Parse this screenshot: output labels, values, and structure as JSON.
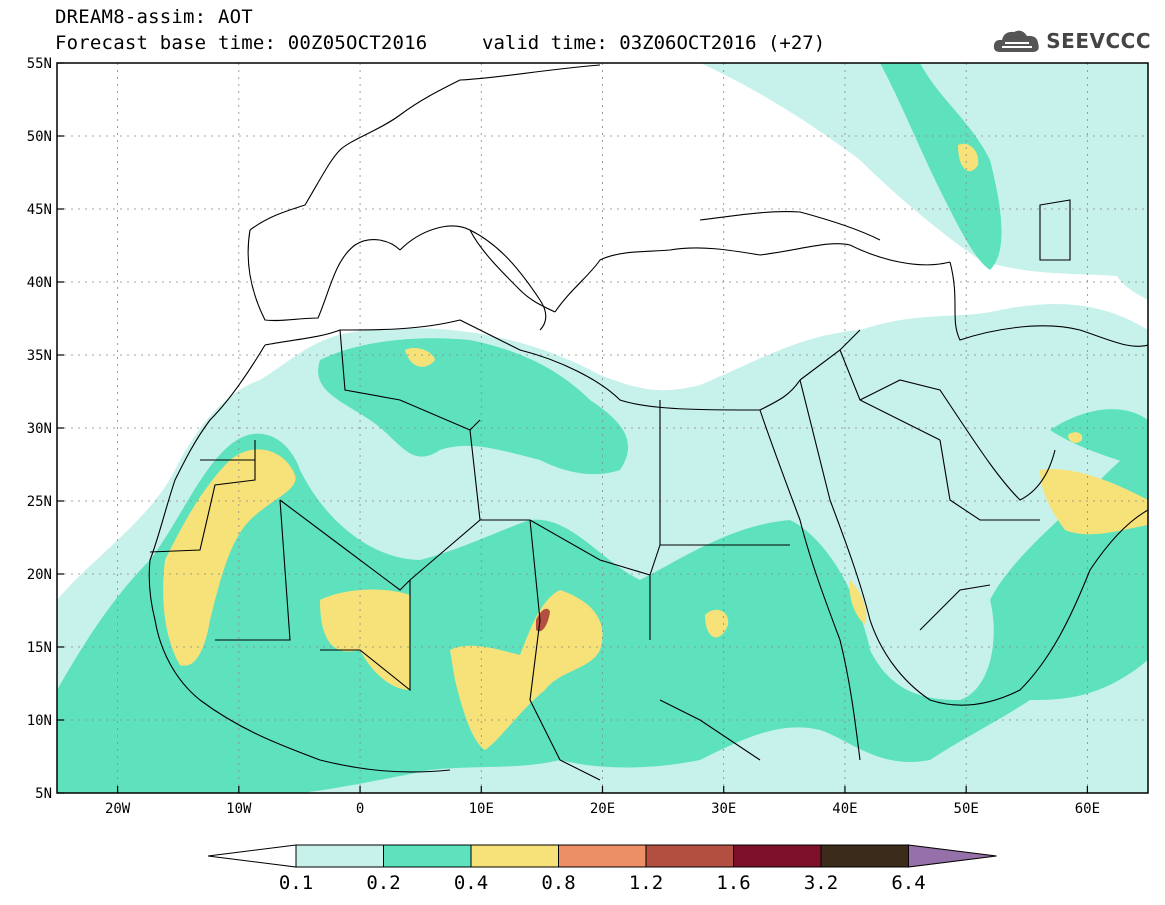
{
  "header": {
    "title": "DREAM8-assim: AOT",
    "base_time": "Forecast base time: 00Z05OCT2016",
    "valid_time": "valid time: 03Z06OCT2016 (+27)"
  },
  "logo": {
    "text": "SEEVCCC",
    "icon": "cloud-icon"
  },
  "map": {
    "lon_range": [
      -25,
      65
    ],
    "lat_range": [
      5,
      55
    ],
    "lat_ticks": [
      {
        "value": 55,
        "label": "55N"
      },
      {
        "value": 50,
        "label": "50N"
      },
      {
        "value": 45,
        "label": "45N"
      },
      {
        "value": 40,
        "label": "40N"
      },
      {
        "value": 35,
        "label": "35N"
      },
      {
        "value": 30,
        "label": "30N"
      },
      {
        "value": 25,
        "label": "25N"
      },
      {
        "value": 20,
        "label": "20N"
      },
      {
        "value": 15,
        "label": "15N"
      },
      {
        "value": 10,
        "label": "10N"
      },
      {
        "value": 5,
        "label": "5N"
      }
    ],
    "lon_ticks": [
      {
        "value": -20,
        "label": "20W"
      },
      {
        "value": -10,
        "label": "10W"
      },
      {
        "value": 0,
        "label": "0"
      },
      {
        "value": 10,
        "label": "10E"
      },
      {
        "value": 20,
        "label": "20E"
      },
      {
        "value": 30,
        "label": "30E"
      },
      {
        "value": 40,
        "label": "40E"
      },
      {
        "value": 50,
        "label": "50E"
      },
      {
        "value": 60,
        "label": "60E"
      }
    ],
    "grid": true
  },
  "colorbar": {
    "colors": [
      "#c7f2ec",
      "#5ee2be",
      "#f7e27a",
      "#ec8f66",
      "#b34f40",
      "#7c0f2a",
      "#3b2b1b",
      "#9670a8"
    ],
    "under_color": "#ffffff",
    "labels": [
      "0.1",
      "0.2",
      "0.4",
      "0.8",
      "1.2",
      "1.6",
      "3.2",
      "6.4"
    ]
  }
}
